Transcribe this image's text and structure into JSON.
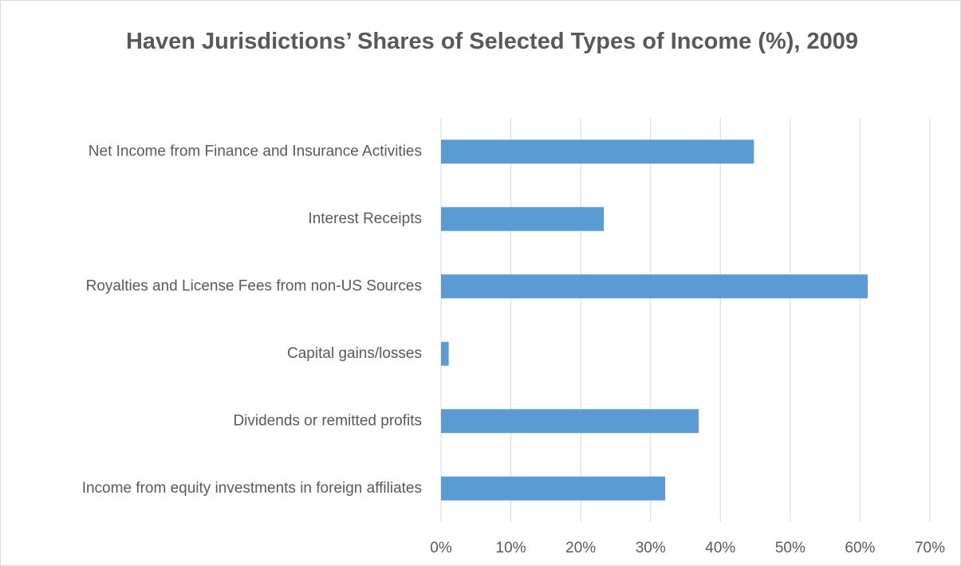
{
  "chart_data": {
    "type": "bar",
    "orientation": "horizontal",
    "title": "Haven Jurisdictions’ Shares of Selected Types of Income (%), 2009",
    "categories": [
      "Net Income from Finance and Insurance Activities",
      "Interest Receipts",
      "Royalties and License Fees from non-US Sources",
      "Capital gains/losses",
      "Dividends or remitted profits",
      "Income from equity investments in foreign affiliates"
    ],
    "values": [
      44.8,
      23.3,
      61.1,
      1.1,
      36.9,
      32.1
    ],
    "color": "#5b9bd5",
    "xlim": [
      0,
      70
    ],
    "xticks": [
      {
        "value": 0,
        "label": "0%"
      },
      {
        "value": 10,
        "label": "10%"
      },
      {
        "value": 20,
        "label": "20%"
      },
      {
        "value": 30,
        "label": "30%"
      },
      {
        "value": 40,
        "label": "40%"
      },
      {
        "value": 50,
        "label": "50%"
      },
      {
        "value": 60,
        "label": "60%"
      },
      {
        "value": 70,
        "label": "70%"
      }
    ],
    "grid": true
  }
}
